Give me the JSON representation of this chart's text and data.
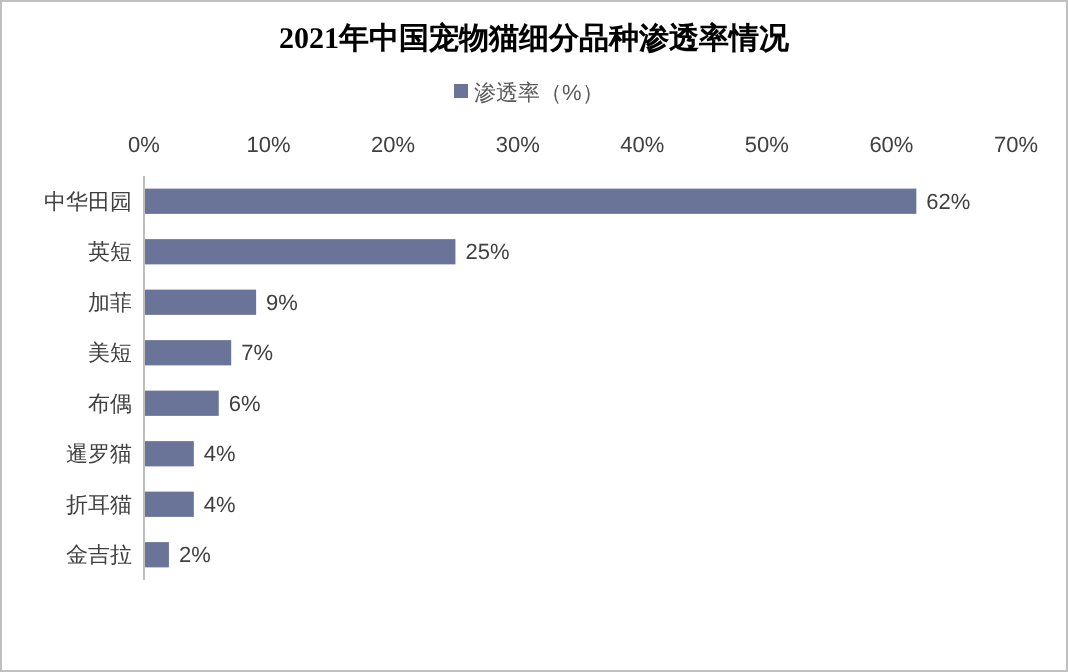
{
  "chart_data": {
    "type": "bar",
    "orientation": "horizontal",
    "title": "2021年中国宠物猫细分品种渗透率情况",
    "categories": [
      "中华田园",
      "英短",
      "加菲",
      "美短",
      "布偶",
      "暹罗猫",
      "折耳猫",
      "金吉拉"
    ],
    "series": [
      {
        "name": "渗透率（%）",
        "color": "#6a7398",
        "values": [
          62,
          25,
          9,
          7,
          6,
          4,
          4,
          2
        ]
      }
    ],
    "value_labels": [
      "62%",
      "25%",
      "9%",
      "7%",
      "6%",
      "4%",
      "4%",
      "2%"
    ],
    "xlim": [
      0,
      70
    ],
    "xticks": [
      {
        "value": 0,
        "label": "0%"
      },
      {
        "value": 10,
        "label": "10%"
      },
      {
        "value": 20,
        "label": "20%"
      },
      {
        "value": 30,
        "label": "30%"
      },
      {
        "value": 40,
        "label": "40%"
      },
      {
        "value": 50,
        "label": "50%"
      },
      {
        "value": 60,
        "label": "60%"
      },
      {
        "value": 70,
        "label": "70%"
      }
    ],
    "legend": "top",
    "grid": false
  }
}
